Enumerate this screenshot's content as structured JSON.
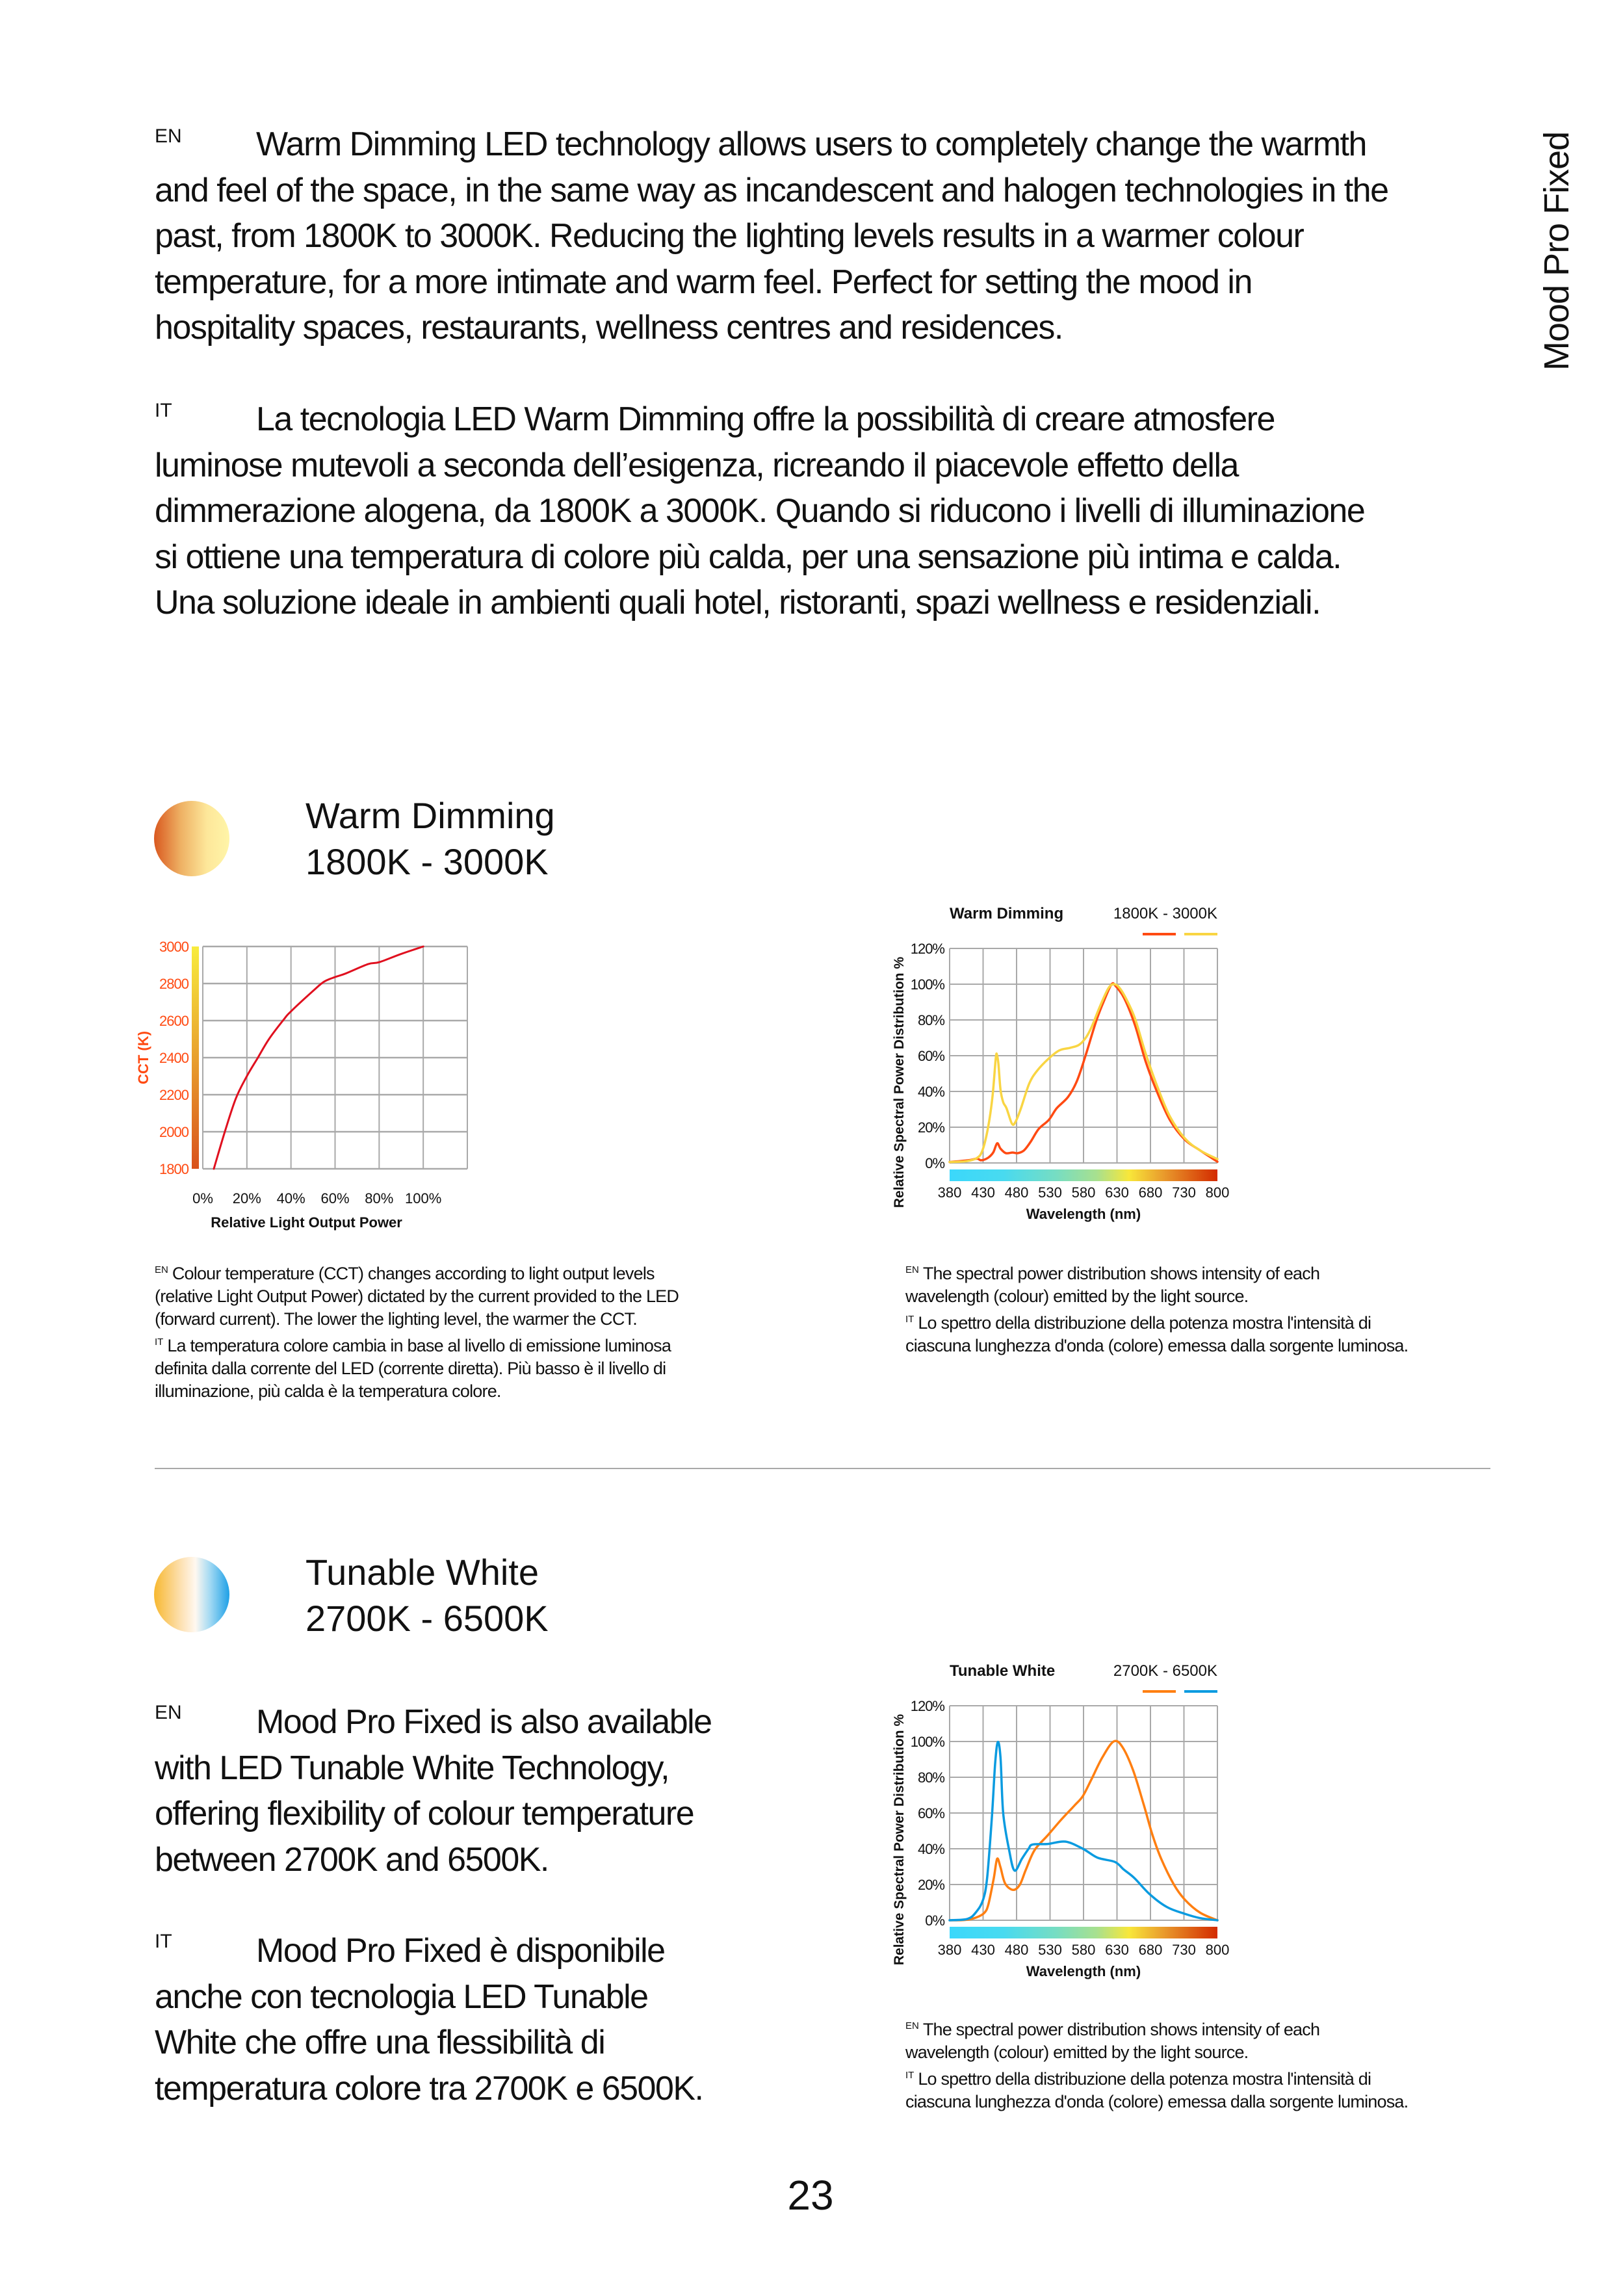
{
  "side_title": "Mood Pro Fixed",
  "intro": {
    "en": {
      "tag": "EN",
      "lines": [
        "Warm Dimming LED technology allows users to completely change the warmth",
        "and feel of the space, in the same way as incandescent and halogen technologies in the",
        "past, from 1800K to 3000K. Reducing the lighting levels results in a warmer colour",
        "temperature, for a more intimate and warm feel. Perfect for setting the mood in",
        "hospitality spaces, restaurants, wellness centres and residences."
      ]
    },
    "it": {
      "tag": "IT",
      "lines": [
        "La tecnologia LED Warm Dimming offre la possibilità di creare atmosfere",
        "luminose mutevoli a seconda dell’esigenza, ricreando il piacevole effetto della",
        "dimmerazione alogena, da 1800K a 3000K. Quando si riducono i livelli di illuminazione",
        "si ottiene una temperatura di colore più calda, per una sensazione più intima e calda.",
        "Una soluzione ideale in ambienti quali hotel, ristoranti, spazi wellness e residenziali."
      ]
    }
  },
  "warm": {
    "title": "Warm Dimming",
    "range": "1800K - 3000K",
    "cct_caption": {
      "en_tag": "EN",
      "en_lines": [
        "Colour temperature (CCT) changes according to light output levels",
        "(relative Light Output Power) dictated by the current provided to the LED",
        "(forward current). The lower the lighting level, the warmer the CCT."
      ],
      "it_tag": "IT",
      "it_lines": [
        "La temperatura colore cambia in base al livello di emissione luminosa",
        "definita dalla corrente del LED (corrente diretta). Più basso è il livello di",
        "illuminazione, più calda è la temperatura colore."
      ]
    },
    "spd_caption": {
      "en_tag": "EN",
      "en_lines": [
        "The spectral power distribution shows intensity of each",
        "wavelength (colour) emitted by the light source."
      ],
      "it_tag": "IT",
      "it_lines": [
        "Lo spettro della distribuzione della potenza mostra l'intensità di",
        "ciascuna lunghezza d'onda (colore) emessa dalla sorgente luminosa."
      ]
    }
  },
  "tunable": {
    "title": "Tunable White",
    "range": "2700K - 6500K",
    "en": {
      "tag": "EN",
      "lines": [
        "Mood Pro Fixed is also available",
        "with LED Tunable White Technology,",
        "offering flexibility of colour temperature",
        "between 2700K and 6500K."
      ]
    },
    "it": {
      "tag": "IT",
      "lines": [
        "Mood Pro Fixed è disponibile",
        "anche con tecnologia LED Tunable",
        "White che offre una flessibilità di",
        "temperatura colore tra 2700K e 6500K."
      ]
    },
    "spd_caption": {
      "en_tag": "EN",
      "en_lines": [
        "The spectral power distribution shows intensity of each",
        "wavelength (colour) emitted by the light source."
      ],
      "it_tag": "IT",
      "it_lines": [
        "Lo spettro della distribuzione della potenza mostra l'intensità di",
        "ciascuna lunghezza d'onda (colore) emessa dalla sorgente luminosa."
      ]
    }
  },
  "page_number": "23",
  "colors": {
    "cct_label": "#ff4a12",
    "curve_red": "#e0101f",
    "warm_1800": "#ff4a12",
    "warm_3000": "#f9d543",
    "tw_2700": "#ff7f11",
    "tw_6500": "#0a9be0",
    "grid": "#a9a9a9"
  },
  "chart_data": [
    {
      "type": "line",
      "title": "",
      "xlabel": "Relative Light Output Power",
      "ylabel": "CCT (K)",
      "xlim": [
        0,
        120
      ],
      "ylim": [
        1800,
        3000
      ],
      "xticks": [
        0,
        20,
        40,
        60,
        80,
        100
      ],
      "xtick_labels": [
        "0%",
        "20%",
        "40%",
        "60%",
        "80%",
        "100%"
      ],
      "yticks": [
        1800,
        2000,
        2200,
        2400,
        2600,
        2800,
        3000
      ],
      "ytick_labels": [
        "1800",
        "2000",
        "2200",
        "2400",
        "2600",
        "2800",
        "3000"
      ],
      "grid": true,
      "series": [
        {
          "name": "CCT",
          "x": [
            5,
            10,
            15,
            20,
            25,
            30,
            37,
            40,
            50,
            55,
            60,
            65,
            75,
            80,
            90,
            100
          ],
          "y": [
            1800,
            2000,
            2180,
            2300,
            2400,
            2500,
            2610,
            2650,
            2760,
            2810,
            2835,
            2855,
            2905,
            2915,
            2960,
            3000
          ]
        }
      ]
    },
    {
      "type": "line",
      "title": "Warm Dimming",
      "legend_title": "1800K - 3000K",
      "legend_placement": "top-right",
      "xlabel": "Wavelength (nm)",
      "ylabel": "Relative Spectral Power Distribution %",
      "xtick_labels": [
        "380",
        "430",
        "480",
        "530",
        "580",
        "630",
        "680",
        "730",
        "800"
      ],
      "xticks": [
        380,
        430,
        480,
        530,
        580,
        630,
        680,
        730,
        800
      ],
      "ylim": [
        0,
        120
      ],
      "yticks": [
        0,
        20,
        40,
        60,
        80,
        100,
        120
      ],
      "ytick_labels": [
        "0%",
        "20%",
        "40%",
        "60%",
        "80%",
        "100%",
        "120%"
      ],
      "grid": true,
      "series": [
        {
          "name": "1800K",
          "color_key": "warm_1800",
          "x": [
            380,
            408,
            421,
            427,
            437,
            445,
            451,
            456,
            464,
            474,
            482,
            491,
            501,
            513,
            528,
            540,
            557,
            570,
            583,
            599,
            612,
            622,
            628,
            641,
            657,
            673,
            690,
            709,
            732,
            764,
            800
          ],
          "y": [
            0.5,
            1.5,
            2.4,
            1.5,
            2.8,
            5.8,
            11,
            8,
            5.5,
            5.8,
            5.5,
            7,
            11.8,
            19,
            24,
            30.6,
            37,
            45.7,
            60,
            79.5,
            92,
            100,
            99,
            92,
            77,
            56.5,
            39.6,
            24,
            13,
            7,
            0.7
          ]
        },
        {
          "name": "3000K",
          "color_key": "warm_3000",
          "x": [
            380,
            405,
            421,
            429,
            437,
            444,
            449,
            451,
            453,
            456,
            460,
            465,
            473,
            478,
            486,
            499,
            511,
            528,
            544,
            560,
            573,
            583,
            592,
            605,
            617,
            625,
            633,
            644,
            657,
            673,
            690,
            709,
            732,
            764,
            800
          ],
          "y": [
            0.5,
            1,
            2.8,
            7,
            19,
            37,
            59,
            60,
            55,
            41,
            34,
            30.6,
            22,
            22.7,
            30,
            44.5,
            51.7,
            58.4,
            63,
            64.4,
            66,
            69.8,
            76,
            88,
            97.6,
            100,
            98.3,
            91.6,
            80.7,
            61,
            43,
            26,
            13.7,
            7,
            2.2
          ]
        }
      ]
    },
    {
      "type": "line",
      "title": "Tunable White",
      "legend_title": "2700K - 6500K",
      "legend_placement": "top-right",
      "xlabel": "Wavelength (nm)",
      "ylabel": "Relative Spectral Power Distribution %",
      "xtick_labels": [
        "380",
        "430",
        "480",
        "530",
        "580",
        "630",
        "680",
        "730",
        "800"
      ],
      "xticks": [
        380,
        430,
        480,
        530,
        580,
        630,
        680,
        730,
        800
      ],
      "ylim": [
        0,
        120
      ],
      "yticks": [
        0,
        20,
        40,
        60,
        80,
        100,
        120
      ],
      "ytick_labels": [
        "0%",
        "20%",
        "40%",
        "60%",
        "80%",
        "100%",
        "120%"
      ],
      "grid": true,
      "series": [
        {
          "name": "2700K",
          "color_key": "tw_2700",
          "x": [
            380,
            404,
            420,
            432,
            438,
            446,
            451,
            456,
            463,
            475,
            485,
            494,
            507,
            527,
            546,
            566,
            579,
            592,
            608,
            625,
            638,
            654,
            670,
            683,
            696,
            715,
            732,
            764,
            800
          ],
          "y": [
            0,
            0.2,
            1.6,
            4.2,
            9,
            23.6,
            34.4,
            29.6,
            20.5,
            17,
            20,
            28.4,
            39.3,
            47.7,
            56,
            64,
            69.5,
            79,
            91,
            100,
            97,
            84,
            64.6,
            47.7,
            34.4,
            20,
            11.5,
            4.2,
            0
          ]
        },
        {
          "name": "6500K",
          "color_key": "tw_6500",
          "x": [
            380,
            407,
            420,
            430,
            436,
            443,
            448,
            452,
            456,
            460,
            469,
            477,
            488,
            498,
            504,
            527,
            553,
            579,
            601,
            627,
            640,
            656,
            679,
            705,
            732,
            764,
            800
          ],
          "y": [
            0,
            0.8,
            4.8,
            11.5,
            23.6,
            57,
            87.6,
            99.7,
            91,
            60,
            39,
            27.8,
            34.4,
            40,
            42.4,
            42.7,
            44,
            40,
            35,
            32.6,
            28.4,
            23.6,
            14.5,
            7.3,
            3.6,
            1.2,
            0
          ]
        }
      ]
    }
  ]
}
